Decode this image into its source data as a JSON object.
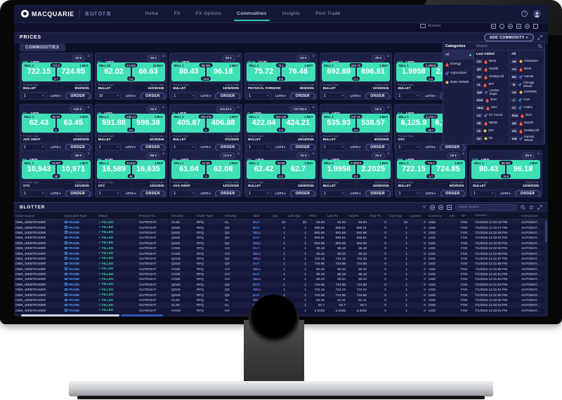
{
  "nav": {
    "brand": "MACQUARIE",
    "app": "aurora",
    "tabs": [
      {
        "label": "Home"
      },
      {
        "label": "FX"
      },
      {
        "label": "FX Options"
      },
      {
        "label": "Commodities"
      },
      {
        "label": "Insights"
      },
      {
        "label": "Post Trade"
      }
    ],
    "active_tab": "Commodities"
  },
  "toolbar": {
    "account_label": "Account"
  },
  "prices": {
    "title": "PRICES",
    "tab": "COMMODITIES",
    "add_button": "ADD COMMODITY +"
  },
  "tile_labels": {
    "product_type": "Product Type",
    "expiry_date": "Expiry Date",
    "lots": "LOTS",
    "order": "ORDER"
  },
  "tiles": [
    {
      "row": 1,
      "code": "QS",
      "ccy": "USD",
      "exchange": "ICE",
      "name": "GASOIL",
      "tenor": "U5",
      "sell_label": "SELL 1",
      "buy_label": "1 BUY",
      "mid": "723.5",
      "bid": "722.15",
      "ask": "724.85",
      "spread": "2.7",
      "product_type": "BULLET",
      "expiry": "9/10/2025",
      "qty": "1"
    },
    {
      "row": 1,
      "code": "CL",
      "ccy": "USD",
      "exchange": "CME",
      "name": "WTI",
      "tenor": "X5",
      "sell_label": "SELL 10",
      "buy_label": "10 BUY",
      "mid": "64.325",
      "bid": "62.02",
      "ask": "66.63",
      "spread": "4.6",
      "product_type": "BULLET",
      "expiry": "10/20/2025",
      "qty": "10"
    },
    {
      "row": 1,
      "code": "CO",
      "ccy": "USD",
      "exchange": "ICE",
      "name": "BRENT",
      "tenor": "Z5",
      "sell_label": "SELL 1",
      "buy_label": "1 BUY",
      "mid": "88.305",
      "bid": "80.43",
      "ask": "96.18",
      "spread": "15.8",
      "product_type": "BULLET",
      "expiry": "12/30/2025",
      "qty": "1"
    },
    {
      "row": 1,
      "code": "EUA",
      "ccy": "EUR",
      "exchange": "ICE",
      "name": "EUA",
      "tenor": "H6",
      "sell_label": "SELL 1",
      "buy_label": "1 BUY",
      "mid": "76.1",
      "bid": "75.72",
      "ask": "76.48",
      "spread": "0.8",
      "product_type": "PHYSICAL FORWARD",
      "expiry": "3/03/2026",
      "qty": "1"
    },
    {
      "row": 1,
      "code": "QS",
      "ccy": "USD",
      "exchange": "ICE",
      "name": "GASOIL",
      "tenor": "Z5",
      "sell_label": "SELL 1",
      "buy_label": "1 BUY",
      "mid": "694.75",
      "bid": "692.69",
      "ask": "696.81",
      "spread": "4.1",
      "product_type": "BULLET",
      "expiry": "12/10/2025",
      "qty": "1"
    },
    {
      "row": 1,
      "code": "HO",
      "ccy": "USD",
      "exchange": "CME",
      "name": "HEATING OIL",
      "tenor": "X5",
      "sell_label": "SELL 1",
      "buy_label": "1 BUY",
      "mid": "2.09915",
      "bid": "1.9958",
      "ask": "2.2025",
      "spread": "0.2",
      "product_type": "BULLET",
      "expiry": "10/30/2025",
      "qty": "1"
    },
    {
      "row": 2,
      "code": "CL",
      "ccy": "USD",
      "exchange": "CME",
      "name": "WTI",
      "tenor": "H25",
      "sell_label": "SELL 1",
      "buy_label": "1 BUY",
      "mid": "62.94",
      "bid": "62.43",
      "ask": "63.45",
      "spread": "1",
      "product_type": "AVG SWAP",
      "expiry": "12/30/2026",
      "qty": "1"
    },
    {
      "row": 2,
      "code": "W",
      "ccy": "USD",
      "exchange": "CME",
      "name": "CHICAGO WHEAT",
      "tenor": "K6",
      "sell_label": "SELL 1",
      "buy_label": "1 BUY",
      "mid": "595.13",
      "bid": "591.88",
      "ask": "598.38",
      "spread": "6.5",
      "product_type": "BULLET",
      "expiry": "4/14/2026",
      "qty": "1"
    },
    {
      "row": 2,
      "code": "C",
      "ccy": "USD",
      "exchange": "CME",
      "name": "CORN",
      "tenor": "JUL25",
      "sell_label": "SELL 1",
      "buy_label": "1 BUY",
      "mid": "406.375",
      "bid": "405.87",
      "ask": "406.88",
      "spread": "1",
      "product_type": "BULLET",
      "expiry": "7/21/2025",
      "qty": "1"
    },
    {
      "row": 2,
      "code": "C",
      "ccy": "USD",
      "exchange": "CME",
      "name": "CORN",
      "tenor": "OCT25",
      "sell_label": "SELL 1",
      "buy_label": "1 BUY",
      "mid": "423.125",
      "bid": "422.04",
      "ask": "424.21",
      "spread": "2.2",
      "product_type": "BULLET",
      "expiry": "10/14/2025",
      "qty": "1"
    },
    {
      "row": 2,
      "code": "KW",
      "ccy": "USD",
      "exchange": "CME",
      "name": "KANSAS WHEAT",
      "tenor": "U5",
      "sell_label": "SELL 1",
      "buy_label": "1 BUY",
      "mid": "537.25",
      "bid": "535.93",
      "ask": "538.57",
      "spread": "2.6",
      "product_type": "BULLET",
      "expiry": "8/22/2025",
      "qty": "1"
    },
    {
      "row": 2,
      "code": "CA",
      "ccy": "USD",
      "exchange": "LME",
      "name": "COPPER",
      "tenor": "",
      "sell_label": "SELL 1",
      "buy_label": "1 BUY",
      "mid": "6,133.7",
      "bid": "6,125.9",
      "ask": "6,141.6",
      "spread": "15.7",
      "product_type": "OTC",
      "expiry": "",
      "qty": "1"
    },
    {
      "row": 3,
      "code": "NI",
      "ccy": "USD",
      "exchange": "MAC",
      "name": "NICKEL",
      "tenor": "3M",
      "sell_label": "SELL 1",
      "buy_label": "1 BUY",
      "mid": "10,957",
      "bid": "10,943",
      "ask": "10,971",
      "spread": "28",
      "product_type": "OTC",
      "expiry": "10/1/2025",
      "qty": "1"
    },
    {
      "row": 3,
      "code": "NI",
      "ccy": "AUD",
      "exchange": "MAC",
      "name": "NICKEL",
      "tenor": "3M",
      "sell_label": "SELL 1",
      "buy_label": "1 BUY",
      "mid": "16,612",
      "bid": "16,589",
      "ask": "16,635",
      "spread": "46",
      "product_type": "OTC",
      "expiry": "10/1/2025",
      "qty": "1"
    },
    {
      "row": 3,
      "code": "CL",
      "ccy": "USD",
      "exchange": "CME",
      "name": "WTI",
      "tenor": "CL6",
      "sell_label": "SELL 1",
      "buy_label": "1 BUY",
      "mid": "61.56",
      "bid": "61.04",
      "ask": "62.08",
      "spread": "1",
      "product_type": "AVG SWAP",
      "expiry": "12/31/2026",
      "qty": "1"
    },
    {
      "row": 3,
      "code": "CL",
      "ccy": "USD",
      "exchange": "CME",
      "name": "WTI",
      "tenor": "X5",
      "sell_label": "SELL 1",
      "buy_label": "1 BUY",
      "mid": "62.56",
      "bid": "62.42",
      "ask": "62.7",
      "spread": "0.3",
      "product_type": "BULLET",
      "expiry": "10/20/2025",
      "qty": "1"
    },
    {
      "row": 3,
      "code": "HO",
      "ccy": "USD",
      "exchange": "CME",
      "name": "HEATING OIL",
      "tenor": "X5",
      "sell_label": "SELL 1",
      "buy_label": "1 BUY",
      "mid": "2.09915",
      "bid": "1.9958",
      "ask": "2.2025",
      "spread": "0.2",
      "product_type": "BULLET",
      "expiry": "10/30/2025",
      "qty": "1"
    },
    {
      "row": 3,
      "code": "QS",
      "ccy": "USD",
      "exchange": "ICE",
      "name": "GASOIL",
      "tenor": "U5",
      "sell_label": "SELL 1",
      "buy_label": "1 BUY",
      "mid": "723.5",
      "bid": "722.15",
      "ask": "724.85",
      "spread": "2.7",
      "product_type": "BULLET",
      "expiry": "9/10/2025",
      "qty": "1"
    },
    {
      "row": 3,
      "code": "CO",
      "ccy": "USD",
      "exchange": "ICE",
      "name": "BRENT",
      "tenor": "Z5",
      "sell_label": "SELL 1",
      "buy_label": "1 BUY",
      "mid": "88.305",
      "bid": "80.43",
      "ask": "96.18",
      "spread": "15.8",
      "product_type": "BULLET",
      "expiry": "12/30/2025",
      "qty": "1"
    }
  ],
  "sidebar": {
    "categories_title": "Categories",
    "search_placeholder": "Search",
    "categories": [
      {
        "label": "All",
        "icon": "none",
        "active": true
      },
      {
        "label": "Energy",
        "icon": "flame",
        "active": false
      },
      {
        "label": "Agriculture",
        "icon": "plant",
        "active": false
      },
      {
        "label": "Base Metals",
        "icon": "metal",
        "active": false
      }
    ],
    "last_added_title": "Last Added",
    "last_added": [
      {
        "code": "CO",
        "icon": "flame",
        "name": "Brent"
      },
      {
        "code": "QS",
        "icon": "flame",
        "name": "GasOil"
      },
      {
        "code": "HO",
        "icon": "flame",
        "name": "Heating Oil"
      },
      {
        "code": "CL",
        "icon": "flame",
        "name": "WTI"
      },
      {
        "code": "QW",
        "icon": "plant",
        "name": "London Sugar"
      },
      {
        "code": "EUA",
        "icon": "flame",
        "name": "EUA"
      },
      {
        "code": "UKA",
        "icon": "flame",
        "name": "UKA"
      },
      {
        "code": "CC",
        "icon": "plant",
        "name": "NY Cocoa"
      },
      {
        "code": "XB",
        "icon": "flame",
        "name": "RBOB"
      },
      {
        "code": "ZS",
        "icon": "metal",
        "name": "Zinc"
      },
      {
        "code": "SH",
        "icon": "metal",
        "name": "Tin"
      }
    ],
    "all_title": "All",
    "all": [
      {
        "code": "AH",
        "icon": "metal",
        "name": "Aluminium"
      },
      {
        "code": "CO",
        "icon": "flame",
        "name": "Brent"
      },
      {
        "code": "RS",
        "icon": "plant",
        "name": "Canola"
      },
      {
        "code": "W",
        "icon": "plant",
        "name": "Chicago Wheat"
      },
      {
        "code": "CA",
        "icon": "metal",
        "name": "COPPER"
      },
      {
        "code": "C",
        "icon": "plant",
        "name": "Corn"
      },
      {
        "code": "CT",
        "icon": "plant",
        "name": "Cotton"
      },
      {
        "code": "EUA",
        "icon": "flame",
        "name": "EUA"
      },
      {
        "code": "QS",
        "icon": "flame",
        "name": "GasOil"
      },
      {
        "code": "HO",
        "icon": "flame",
        "name": "Heating Oil"
      },
      {
        "code": "KW",
        "icon": "plant",
        "name": "Kansas Wheat"
      }
    ]
  },
  "blotter": {
    "title": "BLOTTER",
    "search_placeholder": "Quick Search...",
    "sorted_by": "Created",
    "sort_icon": "↓",
    "columns": [
      "Order Source",
      "Execution Type",
      "Status",
      "Product Ty...",
      "Security...",
      "Order Type",
      "Security",
      "Side",
      "Qty",
      "Last Qty",
      "Price",
      "Last Px",
      "Avg Px",
      "Stop Px",
      "Cum Qty",
      "Leaves",
      "Currency",
      "Info",
      "TIF",
      "Created",
      "Instructions"
    ],
    "rows": [
      [
        "OMS_WEBTRADER",
        "TRADE",
        "FILLED",
        "OUTRIGHT",
        "CLX5",
        "RFQ",
        "CL",
        "BUY",
        "10",
        "10",
        "64.94",
        "64.94",
        "64.94",
        "0",
        "10",
        "0",
        "USD",
        "",
        "FOK",
        "7/1/2025 12:22:44 PM",
        "AUTOMAT..."
      ],
      [
        "OMS_WEBTRADER",
        "TRADE",
        "FILLED",
        "OUTRIGHT",
        "QSZ5",
        "RFQ",
        "QS",
        "BUY",
        "1",
        "1",
        "696.81",
        "696.81",
        "696.81",
        "0",
        "1",
        "0",
        "USD",
        "",
        "FOK",
        "7/1/2025 12:22:07 PM",
        "AUTOMAT..."
      ],
      [
        "OMS_WEBTRADER",
        "TRADE",
        "FILLED",
        "OUTRIGHT",
        "QSZ5",
        "RFQ",
        "QS",
        "SELL",
        "1",
        "1",
        "692.69",
        "692.69",
        "692.69",
        "0",
        "1",
        "0",
        "USD",
        "",
        "FOK",
        "7/1/2025 12:22:06 PM",
        "AUTOMAT..."
      ],
      [
        "OMS_WEBTRADER",
        "TRADE",
        "FILLED",
        "OUTRIGHT",
        "QSZ5",
        "RFQ",
        "QS",
        "BUY",
        "1",
        "1",
        "696.81",
        "696.81",
        "696.81",
        "0",
        "1",
        "0",
        "USD",
        "",
        "FOK",
        "7/1/2025 12:22:04 PM",
        "AUTOMAT..."
      ],
      [
        "OMS_WEBTRADER",
        "TRADE",
        "FILLED",
        "OUTRIGHT",
        "QSZ5",
        "RFQ",
        "QS",
        "SELL",
        "1",
        "1",
        "692.69",
        "692.69",
        "692.69",
        "0",
        "1",
        "0",
        "USD",
        "",
        "FOK",
        "7/1/2025 12:22:03 PM",
        "AUTOMAT..."
      ],
      [
        "OMS_WEBTRADER",
        "TRADE",
        "FILLED",
        "OUTRIGHT",
        "COZ5",
        "RFQ",
        "CO",
        "BUY",
        "1",
        "1",
        "96.18",
        "96.18",
        "96.18",
        "0",
        "1",
        "0",
        "USD",
        "",
        "FOK",
        "7/1/2025 12:22:00 PM",
        "AUTOMAT..."
      ],
      [
        "OMS_WEBTRADER",
        "TRADE",
        "FILLED",
        "OUTRIGHT",
        "COZ5",
        "RFQ",
        "CO",
        "SELL",
        "1",
        "1",
        "80.43",
        "80.43",
        "80.43",
        "0",
        "1",
        "0",
        "USD",
        "",
        "FOK",
        "7/1/2025 12:21:59 PM",
        "AUTOMAT..."
      ],
      [
        "OMS_WEBTRADER",
        "TRADE",
        "FILLED",
        "OUTRIGHT",
        "QSU5",
        "RFQ",
        "QS",
        "SELL",
        "1",
        "1",
        "722.15",
        "722.15",
        "722.15",
        "0",
        "1",
        "0",
        "USD",
        "",
        "FOK",
        "7/1/2025 12:21:57 PM",
        "AUTOMAT..."
      ],
      [
        "OMS_WEBTRADER",
        "TRADE",
        "FILLED",
        "OUTRIGHT",
        "QSU5",
        "RFQ",
        "QS",
        "BUY",
        "1",
        "1",
        "724.85",
        "724.85",
        "724.85",
        "0",
        "1",
        "0",
        "USD",
        "",
        "FOK",
        "7/1/2025 12:21:56 PM",
        "AUTOMAT..."
      ],
      [
        "OMS_WEBTRADER",
        "TRADE",
        "FILLED",
        "OUTRIGHT",
        "COZ5",
        "RFQ",
        "CO",
        "SELL",
        "1",
        "1",
        "80.43",
        "80.43",
        "80.43",
        "0",
        "1",
        "0",
        "USD",
        "",
        "FOK",
        "7/1/2025 12:21:55 PM",
        "AUTOMAT..."
      ],
      [
        "OMS_WEBTRADER",
        "TRADE",
        "FILLED",
        "OUTRIGHT",
        "COZ5",
        "RFQ",
        "CO",
        "BUY",
        "1",
        "1",
        "96.18",
        "96.18",
        "96.18",
        "0",
        "1",
        "0",
        "USD",
        "",
        "FOK",
        "7/1/2025 12:21:54 PM",
        "AUTOMAT..."
      ],
      [
        "OMS_WEBTRADER",
        "TRADE",
        "FILLED",
        "OUTRIGHT",
        "COZ5",
        "RFQ",
        "CO",
        "SELL",
        "1",
        "1",
        "80.43",
        "80.43",
        "80.43",
        "0",
        "1",
        "0",
        "USD",
        "",
        "FOK",
        "7/1/2025 12:21:53 PM",
        "AUTOMAT..."
      ],
      [
        "OMS_WEBTRADER",
        "TRADE",
        "FILLED",
        "OUTRIGHT",
        "QSU5",
        "RFQ",
        "QS",
        "BUY",
        "1",
        "1",
        "724.85",
        "724.85",
        "724.85",
        "0",
        "1",
        "0",
        "USD",
        "",
        "FOK",
        "7/1/2025 12:21:52 PM",
        "AUTOMAT..."
      ],
      [
        "OMS_WEBTRADER",
        "TRADE",
        "FILLED",
        "OUTRIGHT",
        "QSU5",
        "RFQ",
        "QS",
        "SELL",
        "1",
        "1",
        "722.15",
        "722.15",
        "722.15",
        "0",
        "1",
        "0",
        "USD",
        "",
        "FOK",
        "7/1/2025 12:21:51 PM",
        "AUTOMAT..."
      ],
      [
        "OMS_WEBTRADER",
        "TRADE",
        "FILLED",
        "OUTRIGHT",
        "QSU5",
        "RFQ",
        "QS",
        "BUY",
        "1",
        "1",
        "724.85",
        "724.85",
        "724.85",
        "0",
        "1",
        "0",
        "USD",
        "",
        "FOK",
        "7/1/2025 12:21:50 PM",
        "AUTOMAT..."
      ],
      [
        "OMS_WEBTRADER",
        "TRADE",
        "FILLED",
        "OUTRIGHT",
        "CLX5",
        "RFQ",
        "CL",
        "SELL",
        "1",
        "1",
        "62.41",
        "62.41",
        "62.41",
        "0",
        "1",
        "0",
        "USD",
        "",
        "FOK",
        "7/1/2025 12:20:06 PM",
        "AUTOMAT..."
      ],
      [
        "OMS_WEBTRADER",
        "TRADE",
        "FILLED",
        "OUTRIGHT",
        "CLX5",
        "RFQ",
        "CL",
        "BUY",
        "1",
        "1",
        "62.7",
        "62.7",
        "62.7",
        "0",
        "1",
        "0",
        "USD",
        "",
        "FOK",
        "7/1/2025 12:20:03 PM",
        "AUTOMAT..."
      ],
      [
        "OMS_WEBTRADER",
        "TRADE",
        "FILLED",
        "OUTRIGHT",
        "HOX5",
        "RFQ",
        "HO",
        "BUY",
        "1",
        "1",
        "2.2025",
        "2.2025",
        "2.2025",
        "0",
        "1",
        "0",
        "USD",
        "",
        "FOK",
        "7/1/2025 12:20:01 PM",
        "AUTOMAT..."
      ]
    ]
  },
  "colors": {
    "accent_teal": "#2fc8b9",
    "price_teal": "#3fe0b6",
    "buy_blue": "#4d7ef7",
    "sell_purple": "#8b7ff0",
    "filled_green": "#35d49a",
    "energy": "#ff5b3a",
    "agriculture": "#4d8df7",
    "base_metals": "#f5c242"
  }
}
